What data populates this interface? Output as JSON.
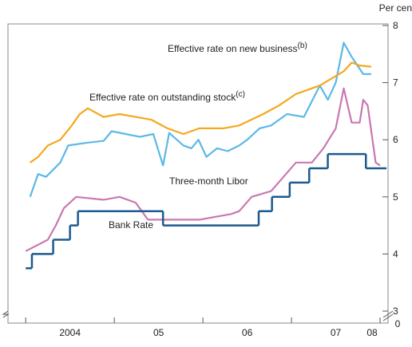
{
  "chart_data": {
    "type": "line",
    "unit_label": "Per cent",
    "axis_break_label": "0",
    "xlim": [
      2003.8,
      2008.09
    ],
    "xticks": [
      2004,
      2005,
      2006,
      2007,
      2008
    ],
    "xtick_labels": [
      {
        "value": 2004.5,
        "label": "2004"
      },
      {
        "value": 2005.5,
        "label": "05"
      },
      {
        "value": 2006.5,
        "label": "06"
      },
      {
        "value": 2007.5,
        "label": "07"
      },
      {
        "value": 2007.91,
        "label": "08"
      }
    ],
    "ylim": [
      3,
      8
    ],
    "yticks": [
      3,
      4,
      5,
      6,
      7,
      8
    ],
    "series": [
      {
        "name": "Effective rate on new business",
        "name_sup": "(b)",
        "color": "#5cb8e6",
        "step": false,
        "x": [
          2004.05,
          2004.14,
          2004.23,
          2004.39,
          2004.48,
          2004.7,
          2004.88,
          2004.97,
          2005.29,
          2005.44,
          2005.55,
          2005.62,
          2005.78,
          2005.87,
          2005.95,
          2006.04,
          2006.16,
          2006.28,
          2006.41,
          2006.5,
          2006.64,
          2006.77,
          2006.95,
          2007.14,
          2007.32,
          2007.41,
          2007.5,
          2007.59,
          2007.68,
          2007.81,
          2007.9
        ],
        "values": [
          5.0,
          5.4,
          5.35,
          5.6,
          5.9,
          5.95,
          5.98,
          6.15,
          6.05,
          6.1,
          5.55,
          6.12,
          5.9,
          5.85,
          6.0,
          5.7,
          5.85,
          5.8,
          5.9,
          6.0,
          6.2,
          6.25,
          6.45,
          6.4,
          6.95,
          6.7,
          7.0,
          7.7,
          7.45,
          7.15,
          7.15
        ]
      },
      {
        "name": "Effective rate on outstanding stock",
        "name_sup": "(c)",
        "color": "#f5a81c",
        "step": false,
        "x": [
          2004.05,
          2004.14,
          2004.25,
          2004.39,
          2004.52,
          2004.61,
          2004.7,
          2004.88,
          2005.06,
          2005.24,
          2005.42,
          2005.6,
          2005.78,
          2005.96,
          2006.23,
          2006.41,
          2006.68,
          2006.86,
          2007.05,
          2007.32,
          2007.59,
          2007.68,
          2007.77,
          2007.9
        ],
        "values": [
          5.6,
          5.7,
          5.9,
          6.0,
          6.25,
          6.45,
          6.55,
          6.4,
          6.45,
          6.4,
          6.35,
          6.2,
          6.1,
          6.2,
          6.2,
          6.25,
          6.45,
          6.6,
          6.8,
          6.95,
          7.2,
          7.35,
          7.3,
          7.28
        ]
      },
      {
        "name": "Three-month Libor",
        "color": "#c978b0",
        "step": false,
        "x": [
          2004.0,
          2004.25,
          2004.34,
          2004.43,
          2004.57,
          2004.88,
          2005.06,
          2005.24,
          2005.38,
          2005.6,
          2005.96,
          2006.32,
          2006.41,
          2006.55,
          2006.77,
          2006.91,
          2007.05,
          2007.23,
          2007.36,
          2007.5,
          2007.59,
          2007.68,
          2007.77,
          2007.81,
          2007.86,
          2007.95,
          2008.0
        ],
        "values": [
          4.05,
          4.25,
          4.5,
          4.8,
          5.0,
          4.95,
          5.0,
          4.9,
          4.6,
          4.6,
          4.6,
          4.7,
          4.75,
          5.0,
          5.1,
          5.35,
          5.6,
          5.6,
          5.85,
          6.2,
          6.9,
          6.3,
          6.3,
          6.7,
          6.6,
          5.6,
          5.55
        ]
      },
      {
        "name": "Bank Rate",
        "color": "#1d5a8e",
        "step": true,
        "x": [
          2004.0,
          2004.07,
          2004.31,
          2004.5,
          2004.59,
          2005.55,
          2006.63,
          2006.78,
          2006.98,
          2007.2,
          2007.41,
          2007.84,
          2008.0
        ],
        "values": [
          3.75,
          4.0,
          4.25,
          4.5,
          4.75,
          4.5,
          4.75,
          5.0,
          5.25,
          5.5,
          5.75,
          5.5,
          5.5
        ]
      }
    ]
  }
}
